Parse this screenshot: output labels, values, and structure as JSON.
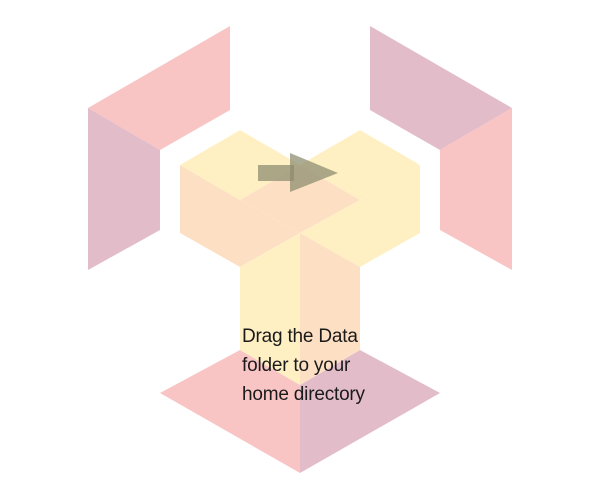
{
  "installer": {
    "instruction_lines": [
      "Drag the Data",
      "folder to your",
      "home directory"
    ],
    "arrow_icon": "arrow-right-icon",
    "colors": {
      "pink": "#f9c4c4",
      "mauve": "#e2bcc8",
      "light_yellow": "#fff0c4",
      "peach": "#fde0c4",
      "arrow": "#8a8a6e"
    }
  }
}
